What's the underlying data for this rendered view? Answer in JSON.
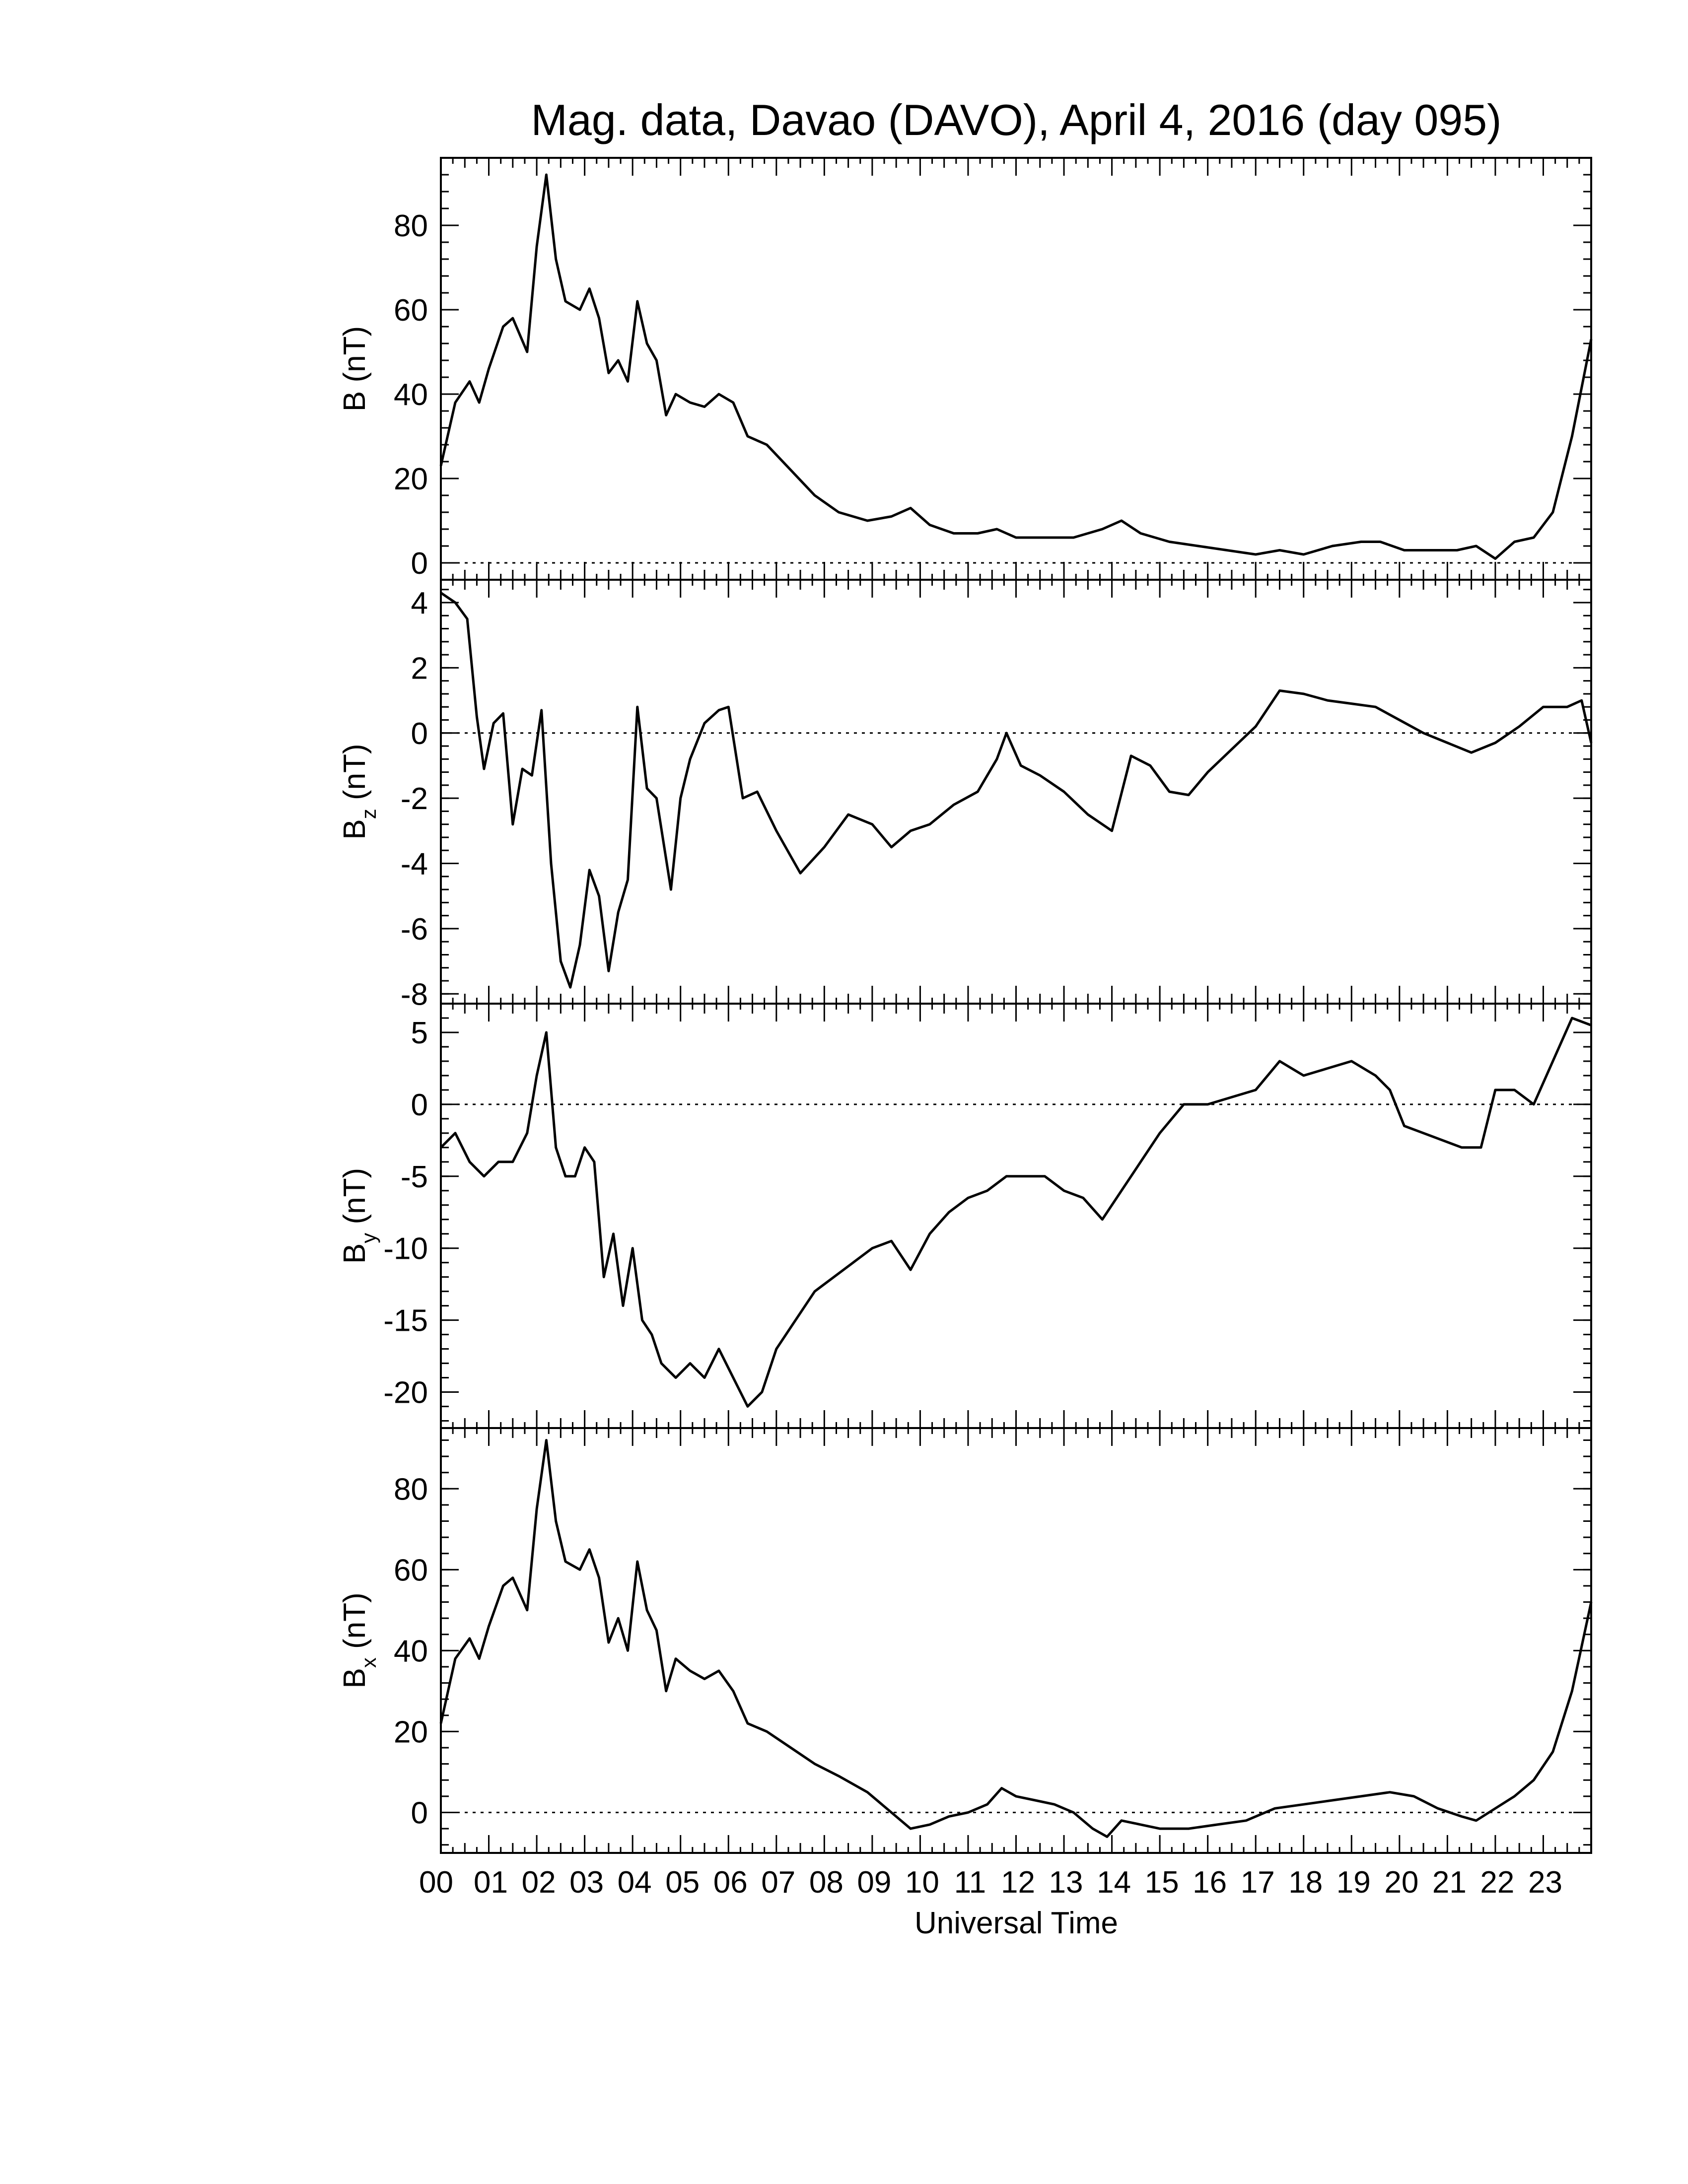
{
  "title": "Mag. data, Davao (DAVO), April 4, 2016 (day 095)",
  "xlabel": "Universal Time",
  "colors": {
    "line": "#000000",
    "background": "#ffffff"
  },
  "chart_data": {
    "type": "line",
    "title": "Mag. data, Davao (DAVO), April 4, 2016 (day 095)",
    "xlabel": "Universal Time",
    "xlim": [
      0,
      24
    ],
    "x_tick_labels": [
      "00",
      "01",
      "02",
      "03",
      "04",
      "05",
      "06",
      "07",
      "08",
      "09",
      "10",
      "11",
      "12",
      "13",
      "14",
      "15",
      "16",
      "17",
      "18",
      "19",
      "20",
      "21",
      "22",
      "23"
    ],
    "grid": false,
    "panels": [
      {
        "name": "B",
        "ylabel_main": "B",
        "ylabel_sub": "",
        "ylabel_unit": " (nT)",
        "ylim": [
          -4,
          96
        ],
        "yticks": [
          0,
          20,
          40,
          60,
          80
        ],
        "x": [
          0,
          0.3,
          0.6,
          0.8,
          1.0,
          1.3,
          1.5,
          1.8,
          2.0,
          2.2,
          2.4,
          2.6,
          2.9,
          3.1,
          3.3,
          3.5,
          3.7,
          3.9,
          4.1,
          4.3,
          4.5,
          4.7,
          4.9,
          5.2,
          5.5,
          5.8,
          6.1,
          6.4,
          6.8,
          7.3,
          7.8,
          8.3,
          8.9,
          9.4,
          9.8,
          10.2,
          10.7,
          11.2,
          11.6,
          12.0,
          12.6,
          13.2,
          13.8,
          14.2,
          14.6,
          15.2,
          15.8,
          16.4,
          17.0,
          17.5,
          18.0,
          18.6,
          19.2,
          19.6,
          20.1,
          20.6,
          21.2,
          21.6,
          22.0,
          22.4,
          22.8,
          23.2,
          23.6,
          24.0
        ],
        "y": [
          23,
          38,
          43,
          38,
          46,
          56,
          58,
          50,
          75,
          92,
          72,
          62,
          60,
          65,
          58,
          45,
          48,
          43,
          62,
          52,
          48,
          35,
          40,
          38,
          37,
          40,
          38,
          30,
          28,
          22,
          16,
          12,
          10,
          11,
          13,
          9,
          7,
          7,
          8,
          6,
          6,
          6,
          8,
          10,
          7,
          5,
          4,
          3,
          2,
          3,
          2,
          4,
          5,
          5,
          3,
          3,
          3,
          4,
          1,
          5,
          6,
          12,
          30,
          53
        ]
      },
      {
        "name": "Bz",
        "ylabel_main": "B",
        "ylabel_sub": "z",
        "ylabel_unit": " (nT)",
        "ylim": [
          -8.3,
          4.7
        ],
        "yticks": [
          -8,
          -6,
          -4,
          -2,
          0,
          2,
          4
        ],
        "x": [
          0,
          0.3,
          0.55,
          0.75,
          0.9,
          1.1,
          1.3,
          1.5,
          1.7,
          1.9,
          2.1,
          2.3,
          2.5,
          2.7,
          2.9,
          3.1,
          3.3,
          3.5,
          3.7,
          3.9,
          4.1,
          4.3,
          4.5,
          4.8,
          5.0,
          5.2,
          5.5,
          5.8,
          6.0,
          6.3,
          6.6,
          7.0,
          7.5,
          8.0,
          8.5,
          9.0,
          9.4,
          9.8,
          10.2,
          10.7,
          11.2,
          11.6,
          11.8,
          12.1,
          12.5,
          13.0,
          13.5,
          14.0,
          14.4,
          14.8,
          15.2,
          15.6,
          16.0,
          16.5,
          17.0,
          17.5,
          18.0,
          18.5,
          19.0,
          19.5,
          20.0,
          20.5,
          21.0,
          21.5,
          22.0,
          22.5,
          23.0,
          23.5,
          23.8,
          24.0
        ],
        "y": [
          4.3,
          4.0,
          3.5,
          0.5,
          -1.1,
          0.3,
          0.6,
          -2.8,
          -1.1,
          -1.3,
          0.7,
          -4.0,
          -7.0,
          -7.8,
          -6.5,
          -4.2,
          -5.0,
          -7.3,
          -5.5,
          -4.5,
          0.8,
          -1.7,
          -2.0,
          -4.8,
          -2.0,
          -0.8,
          0.3,
          0.7,
          0.8,
          -2.0,
          -1.8,
          -3.0,
          -4.3,
          -3.5,
          -2.5,
          -2.8,
          -3.5,
          -3.0,
          -2.8,
          -2.2,
          -1.8,
          -0.8,
          0.0,
          -1.0,
          -1.3,
          -1.8,
          -2.5,
          -3.0,
          -0.7,
          -1.0,
          -1.8,
          -1.9,
          -1.2,
          -0.5,
          0.2,
          1.3,
          1.2,
          1.0,
          0.9,
          0.8,
          0.4,
          0.0,
          -0.3,
          -0.6,
          -0.3,
          0.2,
          0.8,
          0.8,
          1.0,
          -0.3
        ]
      },
      {
        "name": "By",
        "ylabel_main": "B",
        "ylabel_sub": "y",
        "ylabel_unit": " (nT)",
        "ylim": [
          -22.5,
          7.0
        ],
        "yticks": [
          -20,
          -15,
          -10,
          -5,
          0,
          5
        ],
        "x": [
          0,
          0.3,
          0.6,
          0.9,
          1.2,
          1.5,
          1.8,
          2.0,
          2.2,
          2.4,
          2.6,
          2.8,
          3.0,
          3.2,
          3.4,
          3.6,
          3.8,
          4.0,
          4.2,
          4.4,
          4.6,
          4.9,
          5.2,
          5.5,
          5.8,
          6.1,
          6.4,
          6.7,
          7.0,
          7.4,
          7.8,
          8.2,
          8.6,
          9.0,
          9.4,
          9.8,
          10.2,
          10.6,
          11.0,
          11.4,
          11.8,
          12.2,
          12.6,
          13.0,
          13.4,
          13.8,
          14.2,
          14.6,
          15.0,
          15.5,
          16.0,
          16.5,
          17.0,
          17.5,
          18.0,
          18.5,
          19.0,
          19.5,
          19.8,
          20.1,
          20.5,
          20.9,
          21.3,
          21.7,
          22.0,
          22.4,
          22.8,
          23.2,
          23.6,
          24.0
        ],
        "y": [
          -3,
          -2,
          -4,
          -5,
          -4,
          -4,
          -2,
          2,
          5,
          -3,
          -5,
          -5,
          -3,
          -4,
          -12,
          -9,
          -14,
          -10,
          -15,
          -16,
          -18,
          -19,
          -18,
          -19,
          -17,
          -19,
          -21,
          -20,
          -17,
          -15,
          -13,
          -12,
          -11,
          -10,
          -9.5,
          -11.5,
          -9,
          -7.5,
          -6.5,
          -6,
          -5,
          -5,
          -5,
          -6,
          -6.5,
          -8,
          -6,
          -4,
          -2,
          0,
          0,
          0.5,
          1,
          3,
          2,
          2.5,
          3,
          2,
          1,
          -1.5,
          -2,
          -2.5,
          -3,
          -3,
          1,
          1,
          0,
          3,
          6,
          5.5
        ]
      },
      {
        "name": "Bx",
        "ylabel_main": "B",
        "ylabel_sub": "x",
        "ylabel_unit": " (nT)",
        "ylim": [
          -10,
          95
        ],
        "yticks": [
          0,
          20,
          40,
          60,
          80
        ],
        "x": [
          0,
          0.3,
          0.6,
          0.8,
          1.0,
          1.3,
          1.5,
          1.8,
          2.0,
          2.2,
          2.4,
          2.6,
          2.9,
          3.1,
          3.3,
          3.5,
          3.7,
          3.9,
          4.1,
          4.3,
          4.5,
          4.7,
          4.9,
          5.2,
          5.5,
          5.8,
          6.1,
          6.4,
          6.8,
          7.3,
          7.8,
          8.3,
          8.9,
          9.4,
          9.8,
          10.2,
          10.6,
          11.0,
          11.4,
          11.7,
          12.0,
          12.4,
          12.8,
          13.2,
          13.6,
          13.9,
          14.2,
          14.6,
          15.0,
          15.6,
          16.2,
          16.8,
          17.4,
          18.0,
          18.6,
          19.2,
          19.8,
          20.3,
          20.8,
          21.3,
          21.6,
          22.0,
          22.4,
          22.8,
          23.2,
          23.6,
          24.0
        ],
        "y": [
          22,
          38,
          43,
          38,
          46,
          56,
          58,
          50,
          75,
          92,
          72,
          62,
          60,
          65,
          58,
          42,
          48,
          40,
          62,
          50,
          45,
          30,
          38,
          35,
          33,
          35,
          30,
          22,
          20,
          16,
          12,
          9,
          5,
          0,
          -4,
          -3,
          -1,
          0,
          2,
          6,
          4,
          3,
          2,
          0,
          -4,
          -6,
          -2,
          -3,
          -4,
          -4,
          -3,
          -2,
          1,
          2,
          3,
          4,
          5,
          4,
          1,
          -1,
          -2,
          1,
          4,
          8,
          15,
          30,
          52
        ]
      }
    ]
  }
}
